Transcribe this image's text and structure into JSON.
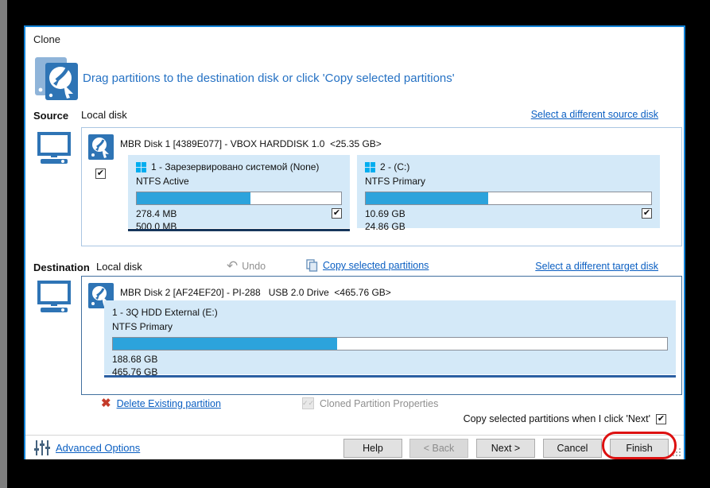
{
  "window": {
    "title": "Clone"
  },
  "header": {
    "instruction": "Drag partitions to the destination disk or click 'Copy selected partitions'"
  },
  "source": {
    "label": "Source",
    "type": "Local disk",
    "change_link": "Select a different source disk",
    "disk": {
      "title": "MBR Disk 1 [4389E077] - VBOX HARDDISK 1.0  <25.35 GB>",
      "checked": true,
      "partitions": [
        {
          "name": "1 - Зарезервировано системой (None)",
          "fs": "NTFS Active",
          "used": "278.4 MB",
          "total": "500.0 MB",
          "fill_percent": 55.7,
          "checked": true,
          "selected": true
        },
        {
          "name": "2 -  (C:)",
          "fs": "NTFS Primary",
          "used": "10.69 GB",
          "total": "24.86 GB",
          "fill_percent": 43,
          "checked": true,
          "selected": false
        }
      ]
    }
  },
  "destination": {
    "label": "Destination",
    "type": "Local disk",
    "undo_label": "Undo",
    "copy_link": "Copy selected partitions",
    "change_link": "Select a different target disk",
    "disk": {
      "title": "MBR Disk 2 [AF24EF20] - PI-288   USB 2.0 Drive  <465.76 GB>",
      "partitions": [
        {
          "name": "1 - 3Q HDD External (E:)",
          "fs": "NTFS Primary",
          "used": "188.68 GB",
          "total": "465.76 GB",
          "fill_percent": 40.5,
          "selected": true
        }
      ]
    }
  },
  "actions": {
    "delete_link": "Delete Existing partition",
    "cloned_props_label": "Cloned Partition Properties",
    "copy_on_next_label": "Copy selected partitions when I click 'Next'",
    "copy_on_next_checked": true
  },
  "footer": {
    "advanced_options": "Advanced Options",
    "buttons": {
      "help": "Help",
      "back": "< Back",
      "next": "Next >",
      "cancel": "Cancel",
      "finish": "Finish"
    }
  },
  "colors": {
    "dialog_border": "#1283d8",
    "partition_bg": "#d4e9f8",
    "bar_fill": "#2ca3dc",
    "link": "#0b5fc2",
    "header_text": "#2672c4",
    "highlight_red": "#dd1111",
    "windows_logo": "#00adef",
    "disk_icon_blue": "#2e74b5"
  }
}
